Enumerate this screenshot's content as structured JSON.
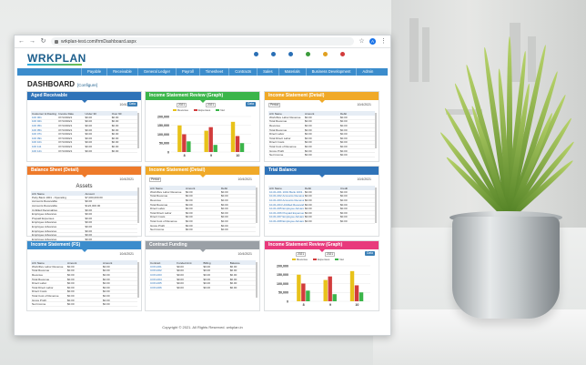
{
  "browser": {
    "url": "wrkplan-test.com/frmDashboard.aspx",
    "account_initial": "A"
  },
  "app": {
    "logo": "WRKPLAN"
  },
  "top_icons": [
    {
      "label": "Home",
      "color": "#2a6fb5"
    },
    {
      "label": "Users",
      "color": "#2a6fb5"
    },
    {
      "label": "Settings",
      "color": "#2a6fb5"
    },
    {
      "label": "Help",
      "color": "#3b9b3b"
    },
    {
      "label": "Alerts",
      "color": "#e0a020"
    },
    {
      "label": "Logout",
      "color": "#d23c3c"
    }
  ],
  "menu": [
    "Payable",
    "Receivable",
    "General Ledger",
    "Payroll",
    "Timesheet",
    "Contracts",
    "Sales",
    "Materials",
    "Business Development",
    "Admin"
  ],
  "dashboard": {
    "title": "DASHBOARD",
    "configure": "[Configure]"
  },
  "widgets": {
    "aged": {
      "title": "Aged Receivable",
      "date": "10/4/2021",
      "go": "Data",
      "color": "#2f73b8",
      "cols": [
        "Customer & Routing No",
        "Invoice Date",
        "Under 30",
        "Over 90"
      ],
      "rows": [
        [
          "100 001",
          "07/13/2021",
          "$0.00",
          "$0.00"
        ],
        [
          "100 021",
          "07/13/2021",
          "$0.00",
          "$0.00"
        ],
        [
          "100 051",
          "07/13/2021",
          "$0.00",
          "$0.00"
        ],
        [
          "100 051",
          "07/13/2021",
          "$0.00",
          "$0.00"
        ],
        [
          "100 071",
          "07/13/2021",
          "$0.00",
          "$0.00"
        ],
        [
          "100 091",
          "07/13/2021",
          "$0.00",
          "$0.00"
        ],
        [
          "100 101",
          "07/13/2021",
          "$0.00",
          "$0.00"
        ],
        [
          "100 111",
          "07/13/2021",
          "$0.00",
          "$0.00"
        ],
        [
          "100 121",
          "07/13/2021",
          "$0.00",
          "$0.00"
        ]
      ]
    },
    "isgraph": {
      "title": "Income Statement Review (Graph)",
      "color": "#3bb54a",
      "go": "Data",
      "period_label": "Period",
      "period_value": "9",
      "sel1": "2021",
      "sel2": "2021"
    },
    "isdetail": {
      "title": "Income Statement (Detail)",
      "color": "#f0a928",
      "period": "Period",
      "date": "10/4/2021",
      "cols": [
        "A/C Name",
        "Amount",
        "Debit"
      ],
      "rows": [
        [
          "Work/Dev Labor Revenue",
          "$0.00",
          "$0.00"
        ],
        [
          "Total Revenue",
          "$0.00",
          "$0.00"
        ],
        [
          "Revenue",
          "$0.00",
          "$0.00"
        ],
        [
          "Total Revenue",
          "$0.00",
          "$0.00"
        ],
        [
          "Direct Labor",
          "$0.00",
          "$0.00"
        ],
        [
          "Total Direct Labor",
          "$0.00",
          "$0.00"
        ],
        [
          "Direct Costs",
          "$0.00",
          "$0.00"
        ],
        [
          "Total Cost of Revenue",
          "$0.00",
          "$0.00"
        ],
        [
          "Gross Profit",
          "$0.00",
          "$0.00"
        ],
        [
          "Net Income",
          "$0.00",
          "$0.00"
        ]
      ]
    },
    "balance": {
      "title": "Balance Sheet (Detail)",
      "color": "#ee7a2a",
      "date": "10/4/2021",
      "subtitle": "Assets",
      "cols": [
        "A/C Name",
        "Amount"
      ],
      "rows": [
        [
          "Petty Bank 1001 - Operating",
          "$7,000,000.00"
        ],
        [
          "Accounts Receivable",
          "$0.00"
        ],
        [
          "Accounts Receivable",
          "$122,000.00"
        ],
        [
          "Unbilled Receivables",
          "$0.00"
        ],
        [
          "Employee Advances",
          "$0.00"
        ],
        [
          "Prepaid Expenses",
          "$0.00"
        ],
        [
          "Employee Advances",
          "$0.00"
        ],
        [
          "Employee Advances",
          "$0.00"
        ],
        [
          "Employee Advances",
          "$0.00"
        ],
        [
          "Employee Advances",
          "$0.00"
        ],
        [
          "Employee Advances",
          "$0.00"
        ],
        [
          "Equipment - Building",
          "$0.00"
        ]
      ]
    },
    "isdetail2": {
      "title": "Income Statement (Detail)",
      "color": "#f0a928",
      "period": "Period",
      "date": "10/4/2021",
      "cols": [
        "A/C Name",
        "Amount",
        "Debit"
      ],
      "rows": [
        [
          "Work/Dev Labor Revenue",
          "$0.00",
          "$0.00"
        ],
        [
          "Total Revenue",
          "$0.00",
          "$0.00"
        ],
        [
          "Revenue",
          "$0.00",
          "$0.00"
        ],
        [
          "Total Revenue",
          "$0.00",
          "$0.00"
        ],
        [
          "Direct Labor",
          "$0.00",
          "$0.00"
        ],
        [
          "Total Direct Labor",
          "$0.00",
          "$0.00"
        ],
        [
          "Direct Costs",
          "$0.00",
          "$0.00"
        ],
        [
          "Total Cost of Revenue",
          "$0.00",
          "$0.00"
        ],
        [
          "Gross Profit",
          "$0.00",
          "$0.00"
        ],
        [
          "Net Income",
          "$0.00",
          "$0.00"
        ]
      ]
    },
    "trial": {
      "title": "Trial Balance",
      "color": "#2f73b8",
      "date": "10/4/2021",
      "cols": [
        "A/C Name",
        "Debit",
        "Credit"
      ],
      "rows": [
        [
          "10-01-001 1001 Bank 1001 - Operating",
          "$0.00",
          "$0.00"
        ],
        [
          "10-01-002 Accounts Receivable",
          "$0.00",
          "$0.00"
        ],
        [
          "10-01-003 Accounts Receivable",
          "$0.00",
          "$0.00"
        ],
        [
          "10-01-004 Unbilled Receivables",
          "$0.00",
          "$0.00"
        ],
        [
          "10-01-005 Employee Advances",
          "$0.00",
          "$0.00"
        ],
        [
          "10-01-006 Prepaid Expenses",
          "$0.00",
          "$0.00"
        ],
        [
          "10-01-007 Employee Advances",
          "$0.00",
          "$0.00"
        ],
        [
          "10-01-008 Employee Advances",
          "$0.00",
          "$0.00"
        ]
      ]
    },
    "isfs": {
      "title": "Income Statement (FS)",
      "color": "#3b8ccc",
      "date": "10/4/2021",
      "cols": [
        "A/C Name",
        "Amount",
        "Amount"
      ],
      "rows": [
        [
          "Work/Dev Labor Revenue",
          "$0.00",
          "$0.00"
        ],
        [
          "Total Revenue",
          "$0.00",
          "$0.00"
        ],
        [
          "Revenue",
          "$0.00",
          "$0.00"
        ],
        [
          "Total Revenue",
          "$0.00",
          "$0.00"
        ],
        [
          "Direct Labor",
          "$0.00",
          "$0.00"
        ],
        [
          "Total Direct Labor",
          "$0.00",
          "$0.00"
        ],
        [
          "Direct Costs",
          "$0.00",
          "$0.00"
        ],
        [
          "Total Cost of Revenue",
          "$0.00",
          "$0.00"
        ],
        [
          "Gross Profit",
          "$0.00",
          "$0.00"
        ],
        [
          "Net Income",
          "$0.00",
          "$0.00"
        ]
      ]
    },
    "contract": {
      "title": "Contract Funding",
      "color": "#9aa0a6",
      "date": "10/4/2021",
      "cols": [
        "Contract",
        "Funded Amt",
        "Billing",
        "Balance"
      ],
      "rows": [
        [
          "CON-001",
          "$0.00",
          "$0.00",
          "$0.00"
        ],
        [
          "CON-002",
          "$0.00",
          "$0.00",
          "$0.00"
        ],
        [
          "CON-003",
          "$0.00",
          "$0.00",
          "$0.00"
        ],
        [
          "CON-004",
          "$0.00",
          "$0.00",
          "$0.00"
        ],
        [
          "CON-005",
          "$0.00",
          "$0.00",
          "$0.00"
        ],
        [
          "CON-006",
          "$0.00",
          "$0.00",
          "$0.00"
        ]
      ]
    },
    "isgraph2": {
      "title": "Income Statement Review (Graph)",
      "color": "#e83a7c",
      "go": "Data",
      "sel1": "2021",
      "sel2": "2021"
    }
  },
  "chart_data": [
    {
      "type": "bar",
      "categories": [
        "8",
        "9",
        "10"
      ],
      "series": [
        {
          "name": "Revenue",
          "values": [
            150000,
            120000,
            170000
          ]
        },
        {
          "name": "Expenses",
          "values": [
            100000,
            140000,
            90000
          ]
        },
        {
          "name": "Net",
          "values": [
            60000,
            40000,
            50000
          ]
        }
      ],
      "colors": [
        "#e8c21a",
        "#d23c3c",
        "#3bb54a"
      ],
      "ylim": [
        0,
        200000
      ],
      "yticks": [
        "200,000",
        "150,000",
        "100,000",
        "50,000",
        "0"
      ],
      "grid": true
    },
    {
      "type": "bar",
      "categories": [
        "8",
        "9",
        "10"
      ],
      "series": [
        {
          "name": "Revenue",
          "values": [
            150000,
            120000,
            170000
          ]
        },
        {
          "name": "Expenses",
          "values": [
            100000,
            140000,
            90000
          ]
        },
        {
          "name": "Net",
          "values": [
            60000,
            40000,
            50000
          ]
        }
      ],
      "colors": [
        "#e8c21a",
        "#d23c3c",
        "#3bb54a"
      ],
      "ylim": [
        0,
        200000
      ],
      "yticks": [
        "200,000",
        "150,000",
        "100,000",
        "50,000",
        "0"
      ],
      "grid": true
    }
  ],
  "footer": "Copyright © 2021. All Rights Reserved. wrkplan.in"
}
